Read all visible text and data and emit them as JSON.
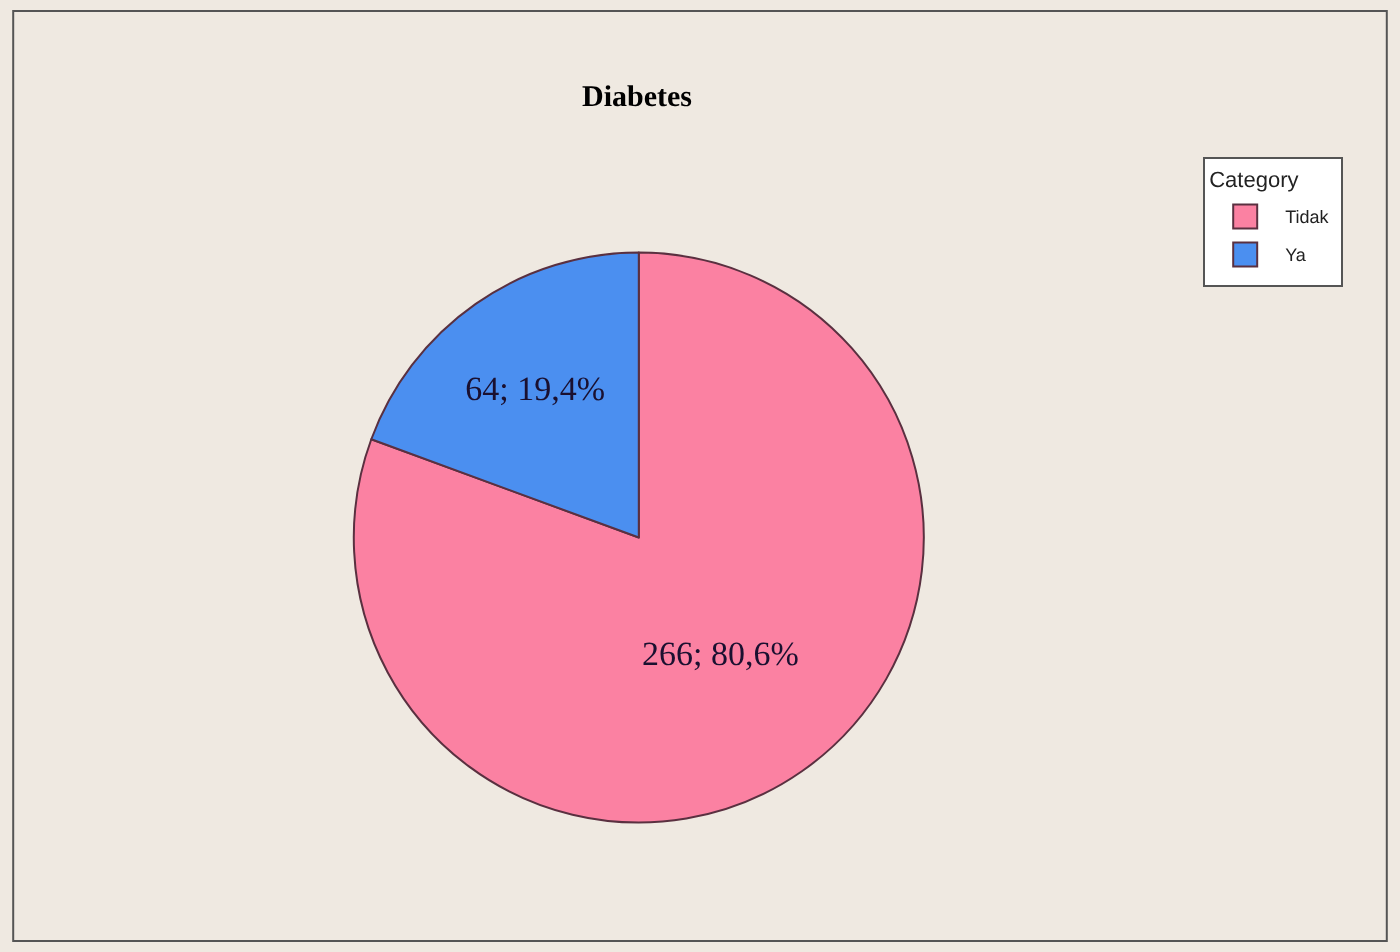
{
  "chart_data": {
    "type": "pie",
    "title": "Diabetes",
    "legend_title": "Category",
    "legend": "top right",
    "categories": [
      "Tidak",
      "Ya"
    ],
    "values": [
      266,
      64
    ],
    "value_labels": [
      "266; 80,6%",
      "64; 19,4%"
    ],
    "colors": [
      "#fb81a2",
      "#4b8ff0"
    ]
  }
}
